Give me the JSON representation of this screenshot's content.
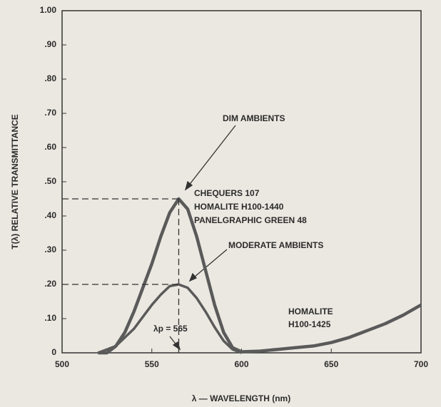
{
  "chart_data": {
    "type": "line",
    "x_label": "λ — WAVELENGTH (nm)",
    "y_label": "T(λ) RELATIVE TRANSMITTANCE",
    "x": [
      520,
      525,
      530,
      535,
      540,
      545,
      550,
      555,
      560,
      565,
      570,
      575,
      580,
      585,
      590,
      595,
      600,
      610,
      620,
      630,
      640,
      650,
      660,
      670,
      680,
      690,
      700
    ],
    "series": [
      {
        "name": "DIM AMBIENTS",
        "color": "#5a5a5a",
        "values": [
          0,
          0,
          0.02,
          0.06,
          0.12,
          0.19,
          0.26,
          0.34,
          0.41,
          0.45,
          0.42,
          0.34,
          0.24,
          0.14,
          0.06,
          0.015,
          0.003,
          0.005,
          0.01,
          0.015,
          0.02,
          0.03,
          0.045,
          0.065,
          0.085,
          0.11,
          0.14
        ]
      },
      {
        "name": "MODERATE AMBIENTS",
        "color": "#5a5a5a",
        "values": [
          0,
          0.01,
          0.02,
          0.045,
          0.07,
          0.105,
          0.14,
          0.17,
          0.195,
          0.2,
          0.19,
          0.16,
          0.12,
          0.075,
          0.035,
          0.01,
          0,
          null,
          null,
          null,
          null,
          null,
          null,
          null,
          null,
          null,
          null
        ]
      }
    ],
    "annotations": [
      "CHEQUERS 107",
      "HOMALITE H100-1440",
      "PANELGRAPHIC GREEN 48",
      "HOMALITE",
      "H100-1425",
      "λp = 565"
    ],
    "xlim": [
      500,
      700
    ],
    "xticks": [
      500,
      550,
      600,
      650,
      700
    ],
    "ylim": [
      0,
      1
    ],
    "yticks": [
      0,
      {
        "value": 0.1,
        "label": ".10"
      },
      {
        "value": 0.2,
        "label": ".20"
      },
      {
        "value": 0.3,
        "label": ".30"
      },
      {
        "value": 0.4,
        "label": ".40"
      },
      {
        "value": 0.5,
        "label": ".50"
      },
      {
        "value": 0.6,
        "label": ".60"
      },
      {
        "value": 0.7,
        "label": ".70"
      },
      {
        "value": 0.8,
        "label": ".80"
      },
      {
        "value": 0.9,
        "label": ".90"
      },
      {
        "value": 1,
        "label": "1.00"
      }
    ]
  }
}
